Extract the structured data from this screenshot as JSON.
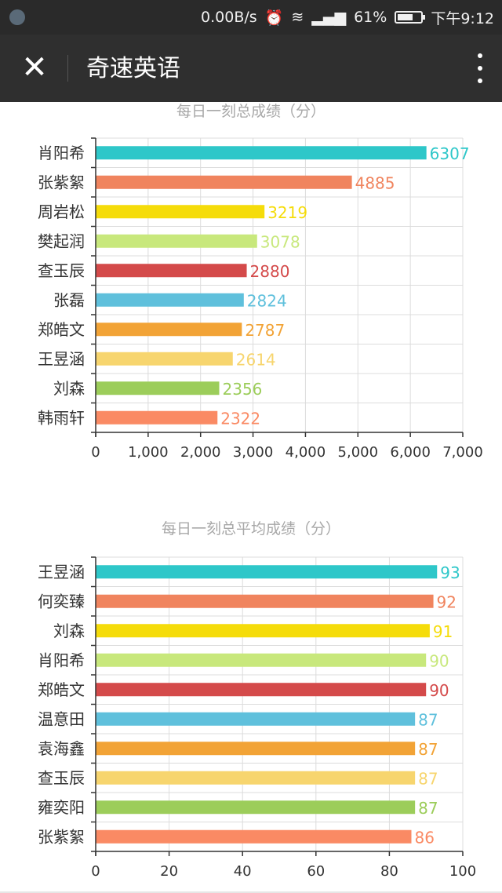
{
  "status_bar": {
    "net_speed": "0.00B/s",
    "battery": "61%",
    "time": "下午9:12"
  },
  "app_bar": {
    "title": "奇速英语"
  },
  "chart_data": [
    {
      "type": "bar",
      "orientation": "horizontal",
      "title": "每日一刻总成绩（分）",
      "categories": [
        "肖阳希",
        "张紫絮",
        "周岩松",
        "樊起润",
        "查玉辰",
        "张磊",
        "郑皓文",
        "王昱涵",
        "刘森",
        "韩雨轩"
      ],
      "values": [
        6307,
        4885,
        3219,
        3078,
        2880,
        2824,
        2787,
        2614,
        2356,
        2322
      ],
      "value_labels": [
        "6307",
        "4885",
        "3219",
        "3078",
        "2880",
        "2824",
        "2787",
        "2614",
        "2356",
        "2322"
      ],
      "xlim": [
        0,
        7000
      ],
      "ticks": [
        0,
        1000,
        2000,
        3000,
        4000,
        5000,
        6000,
        7000
      ],
      "tick_labels": [
        "0",
        "1,000",
        "2,000",
        "3,000",
        "4,000",
        "5,000",
        "6,000",
        "7,000"
      ],
      "colors": [
        "#2ec7c9",
        "#f0845e",
        "#f5dc0a",
        "#c8e87c",
        "#d44a4a",
        "#5fc0dc",
        "#f2a336",
        "#f7d56e",
        "#9ccd5a",
        "#fa8a64"
      ],
      "grid": true
    },
    {
      "type": "bar",
      "orientation": "horizontal",
      "title": "每日一刻总平均成绩（分）",
      "categories": [
        "王昱涵",
        "何奕臻",
        "刘森",
        "肖阳希",
        "郑皓文",
        "温意田",
        "袁海鑫",
        "查玉辰",
        "雍奕阳",
        "张紫絮"
      ],
      "values": [
        93,
        92,
        91,
        90,
        90,
        87,
        87,
        87,
        87,
        86
      ],
      "value_labels": [
        "93",
        "92",
        "91",
        "90",
        "90",
        "87",
        "87",
        "87",
        "87",
        "86"
      ],
      "xlim": [
        0,
        100
      ],
      "ticks": [
        0,
        20,
        40,
        60,
        80,
        100
      ],
      "tick_labels": [
        "0",
        "20",
        "40",
        "60",
        "80",
        "100"
      ],
      "colors": [
        "#2ec7c9",
        "#f0845e",
        "#f5dc0a",
        "#c8e87c",
        "#d44a4a",
        "#5fc0dc",
        "#f2a336",
        "#f7d56e",
        "#9ccd5a",
        "#fa8a64"
      ],
      "grid": true
    }
  ]
}
